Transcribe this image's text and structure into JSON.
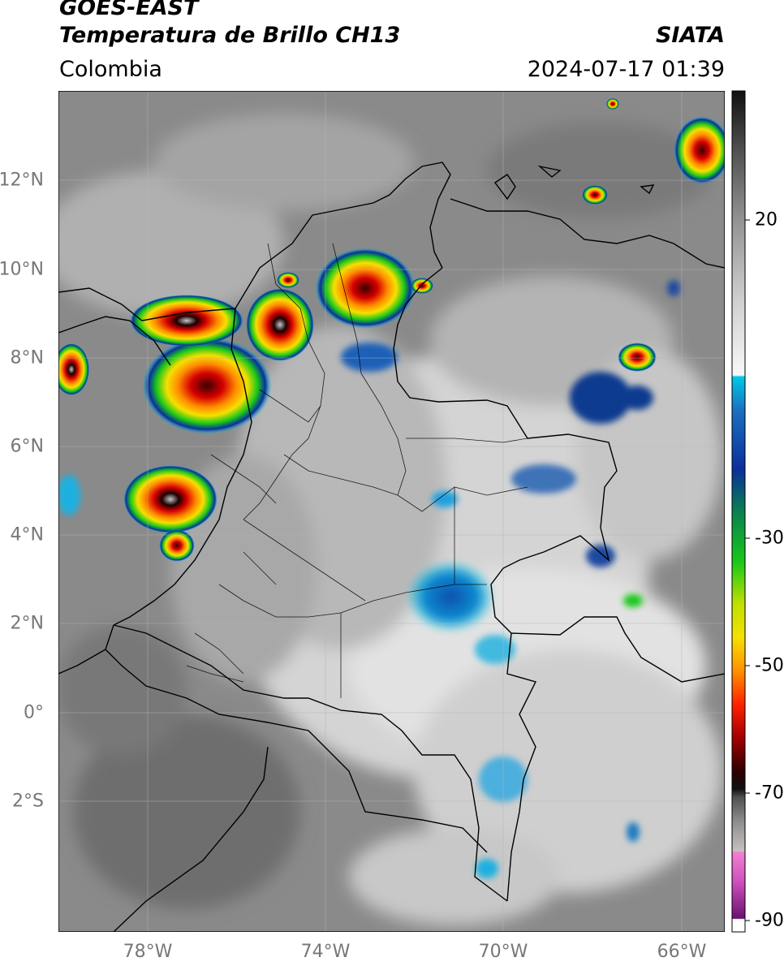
{
  "header": {
    "satellite": "GOES-EAST",
    "product": "Temperatura de Brillo CH13",
    "region": "Colombia",
    "organization": "SIATA",
    "datetime": "2024-07-17 01:39"
  },
  "map": {
    "lat_ticks": [
      "12°N",
      "10°N",
      "8°N",
      "6°N",
      "4°N",
      "2°N",
      "0°",
      "2°S"
    ],
    "lon_ticks": [
      "78°W",
      "74°W",
      "70°W",
      "66°W"
    ]
  },
  "colorbar": {
    "labels": [
      "20",
      "-30",
      "-50",
      "-70",
      "-90"
    ],
    "colors": {
      "gray_dark": "#2a2a2a",
      "gray_light": "#f2f2f2",
      "cyan": "#00c8e6",
      "blue": "#0a2f9c",
      "green": "#19c819",
      "yellow": "#f6e000",
      "orange": "#ff8c00",
      "red": "#d60000",
      "dark_red": "#5a0000",
      "magenta": "#c040c0",
      "purple": "#7a1a7a"
    }
  }
}
